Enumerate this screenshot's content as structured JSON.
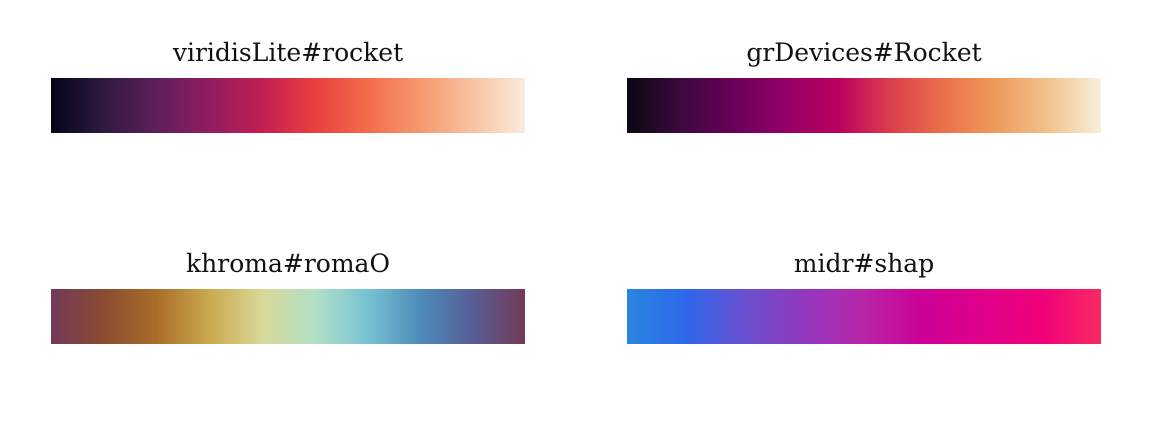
{
  "palettes": [
    {
      "title": "viridisLite#rocket",
      "colors": [
        "#03051A",
        "#2E1A3F",
        "#5E1F5C",
        "#8F1D5F",
        "#C21E52",
        "#E83F3F",
        "#F26B4A",
        "#F6986E",
        "#F8C2A0",
        "#FAEBDD"
      ]
    },
    {
      "title": "grDevices#Rocket",
      "colors": [
        "#0A0612",
        "#3A0A3E",
        "#680058",
        "#930067",
        "#B9005F",
        "#DB3E4E",
        "#EA7048",
        "#EE9A5C",
        "#F1C28C",
        "#F9EFDC"
      ]
    },
    {
      "title": "khroma#romaO",
      "colors": [
        "#733957",
        "#8A4B30",
        "#A96D2A",
        "#CBA84E",
        "#D8D897",
        "#B3E1C6",
        "#78C3D3",
        "#4E8CBA",
        "#575E96",
        "#733957"
      ]
    },
    {
      "title": "midr#shap",
      "colors": [
        "#2A85E0",
        "#2C68EA",
        "#6A50D0",
        "#9338BE",
        "#B825A8",
        "#CC0096",
        "#E0008A",
        "#F0007A",
        "#F92A62"
      ]
    }
  ]
}
